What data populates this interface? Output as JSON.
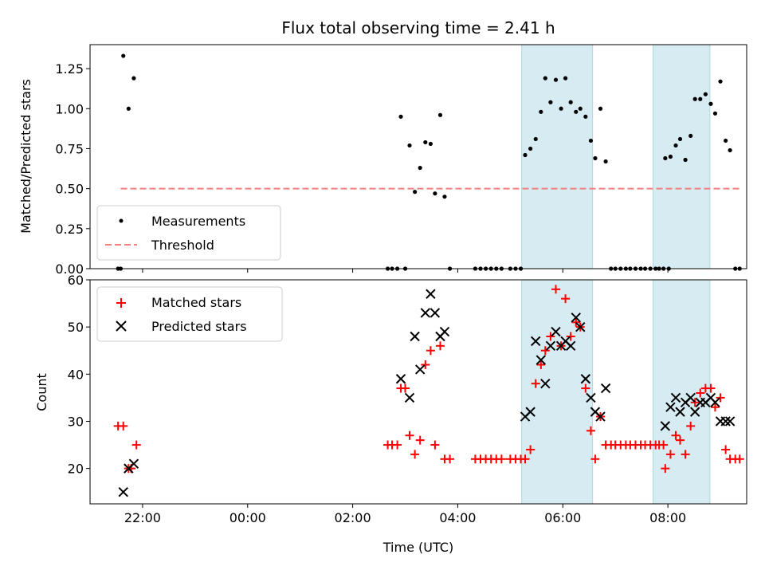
{
  "chart_data": [
    {
      "type": "scatter",
      "title": "Flux total observing time = 2.41 h",
      "xlabel": "",
      "ylabel": "Matched/Predicted stars",
      "xlim": [
        "21:00",
        "09:30"
      ],
      "ylim": [
        0,
        1.4
      ],
      "yticks": [
        "0.00",
        "0.25",
        "0.50",
        "0.75",
        "1.00",
        "1.25"
      ],
      "legend_position": "lower-left",
      "shaded_intervals": [
        [
          "05:13",
          "06:34"
        ],
        [
          "07:43",
          "08:48"
        ]
      ],
      "series": [
        {
          "name": "Measurements",
          "marker": "dot",
          "color": "#000000",
          "points": [
            [
              "21:32",
              0
            ],
            [
              "21:35",
              0
            ],
            [
              "21:38",
              1.33
            ],
            [
              "21:44",
              1.0
            ],
            [
              "21:50",
              1.19
            ],
            [
              "02:40",
              0
            ],
            [
              "02:45",
              0
            ],
            [
              "02:51",
              0
            ],
            [
              "02:55",
              0.95
            ],
            [
              "03:00",
              0
            ],
            [
              "03:05",
              0.77
            ],
            [
              "03:11",
              0.48
            ],
            [
              "03:17",
              0.63
            ],
            [
              "03:23",
              0.79
            ],
            [
              "03:29",
              0.78
            ],
            [
              "03:34",
              0.47
            ],
            [
              "03:40",
              0.96
            ],
            [
              "03:45",
              0.45
            ],
            [
              "03:51",
              0
            ],
            [
              "04:20",
              0
            ],
            [
              "04:26",
              0
            ],
            [
              "04:32",
              0
            ],
            [
              "04:38",
              0
            ],
            [
              "04:44",
              0
            ],
            [
              "04:50",
              0
            ],
            [
              "05:00",
              0
            ],
            [
              "05:06",
              0
            ],
            [
              "05:12",
              0
            ],
            [
              "05:17",
              0.71
            ],
            [
              "05:23",
              0.75
            ],
            [
              "05:29",
              0.81
            ],
            [
              "05:35",
              0.98
            ],
            [
              "05:40",
              1.19
            ],
            [
              "05:46",
              1.04
            ],
            [
              "05:52",
              1.18
            ],
            [
              "05:58",
              1.0
            ],
            [
              "06:03",
              1.19
            ],
            [
              "06:09",
              1.04
            ],
            [
              "06:15",
              0.98
            ],
            [
              "06:20",
              1.0
            ],
            [
              "06:26",
              0.95
            ],
            [
              "06:32",
              0.8
            ],
            [
              "06:37",
              0.69
            ],
            [
              "06:43",
              1.0
            ],
            [
              "06:49",
              0.67
            ],
            [
              "06:55",
              0
            ],
            [
              "07:00",
              0
            ],
            [
              "07:06",
              0
            ],
            [
              "07:12",
              0
            ],
            [
              "07:17",
              0
            ],
            [
              "07:23",
              0
            ],
            [
              "07:29",
              0
            ],
            [
              "07:34",
              0
            ],
            [
              "07:40",
              0
            ],
            [
              "07:46",
              0
            ],
            [
              "07:50",
              0
            ],
            [
              "07:55",
              0
            ],
            [
              "08:01",
              0
            ],
            [
              "07:57",
              0.69
            ],
            [
              "08:03",
              0.7
            ],
            [
              "08:09",
              0.77
            ],
            [
              "08:14",
              0.81
            ],
            [
              "08:20",
              0.68
            ],
            [
              "08:26",
              0.83
            ],
            [
              "08:31",
              1.06
            ],
            [
              "08:37",
              1.06
            ],
            [
              "08:43",
              1.09
            ],
            [
              "08:49",
              1.03
            ],
            [
              "08:54",
              0.97
            ],
            [
              "09:00",
              1.17
            ],
            [
              "09:06",
              0.8
            ],
            [
              "09:11",
              0.74
            ],
            [
              "09:17",
              0
            ],
            [
              "09:22",
              0
            ]
          ]
        },
        {
          "name": "Threshold",
          "marker": "dashed-line",
          "color": "#f08080",
          "x": [
            "21:35",
            "09:22"
          ],
          "y": [
            0.5,
            0.5
          ]
        }
      ]
    },
    {
      "type": "scatter",
      "title": "",
      "xlabel": "Time (UTC)",
      "ylabel": "Count",
      "xlim": [
        "21:00",
        "09:30"
      ],
      "ylim": [
        12.5,
        60
      ],
      "yticks": [
        "20",
        "30",
        "40",
        "50",
        "60"
      ],
      "xticks": [
        "22:00",
        "00:00",
        "02:00",
        "04:00",
        "06:00",
        "08:00"
      ],
      "legend_position": "upper-left",
      "shaded_intervals": [
        [
          "05:13",
          "06:34"
        ],
        [
          "07:43",
          "08:48"
        ]
      ],
      "series": [
        {
          "name": "Matched stars",
          "marker": "plus",
          "color": "#ff0000",
          "points": [
            [
              "21:32",
              29
            ],
            [
              "21:38",
              29
            ],
            [
              "21:44",
              20
            ],
            [
              "21:47",
              20
            ],
            [
              "21:53",
              25
            ],
            [
              "02:40",
              25
            ],
            [
              "02:45",
              25
            ],
            [
              "02:51",
              25
            ],
            [
              "02:55",
              37
            ],
            [
              "03:00",
              37
            ],
            [
              "03:05",
              27
            ],
            [
              "03:11",
              23
            ],
            [
              "03:17",
              26
            ],
            [
              "03:23",
              42
            ],
            [
              "03:29",
              45
            ],
            [
              "03:34",
              25
            ],
            [
              "03:40",
              46
            ],
            [
              "03:45",
              22
            ],
            [
              "03:51",
              22
            ],
            [
              "04:20",
              22
            ],
            [
              "04:26",
              22
            ],
            [
              "04:32",
              22
            ],
            [
              "04:38",
              22
            ],
            [
              "04:44",
              22
            ],
            [
              "04:50",
              22
            ],
            [
              "05:00",
              22
            ],
            [
              "05:06",
              22
            ],
            [
              "05:12",
              22
            ],
            [
              "05:17",
              22
            ],
            [
              "05:23",
              24
            ],
            [
              "05:29",
              38
            ],
            [
              "05:35",
              42
            ],
            [
              "05:40",
              45
            ],
            [
              "05:46",
              48
            ],
            [
              "05:52",
              58
            ],
            [
              "05:58",
              46
            ],
            [
              "06:03",
              56
            ],
            [
              "06:09",
              48
            ],
            [
              "06:15",
              51
            ],
            [
              "06:20",
              50
            ],
            [
              "06:26",
              37
            ],
            [
              "06:32",
              28
            ],
            [
              "06:37",
              22
            ],
            [
              "06:43",
              31
            ],
            [
              "06:49",
              25
            ],
            [
              "06:55",
              25
            ],
            [
              "07:00",
              25
            ],
            [
              "07:06",
              25
            ],
            [
              "07:12",
              25
            ],
            [
              "07:17",
              25
            ],
            [
              "07:23",
              25
            ],
            [
              "07:29",
              25
            ],
            [
              "07:34",
              25
            ],
            [
              "07:40",
              25
            ],
            [
              "07:46",
              25
            ],
            [
              "07:50",
              25
            ],
            [
              "07:55",
              25
            ],
            [
              "07:57",
              20
            ],
            [
              "08:03",
              23
            ],
            [
              "08:09",
              27
            ],
            [
              "08:14",
              26
            ],
            [
              "08:20",
              23
            ],
            [
              "08:26",
              29
            ],
            [
              "08:31",
              34
            ],
            [
              "08:37",
              36
            ],
            [
              "08:43",
              37
            ],
            [
              "08:49",
              37
            ],
            [
              "08:54",
              33
            ],
            [
              "09:00",
              35
            ],
            [
              "09:06",
              24
            ],
            [
              "09:11",
              22
            ],
            [
              "09:17",
              22
            ],
            [
              "09:22",
              22
            ]
          ]
        },
        {
          "name": "Predicted stars",
          "marker": "x",
          "color": "#000000",
          "points": [
            [
              "21:38",
              15
            ],
            [
              "21:44",
              20
            ],
            [
              "21:50",
              21
            ],
            [
              "02:55",
              39
            ],
            [
              "03:05",
              35
            ],
            [
              "03:11",
              48
            ],
            [
              "03:17",
              41
            ],
            [
              "03:23",
              53
            ],
            [
              "03:29",
              57
            ],
            [
              "03:34",
              53
            ],
            [
              "03:40",
              48
            ],
            [
              "03:45",
              49
            ],
            [
              "05:17",
              31
            ],
            [
              "05:23",
              32
            ],
            [
              "05:29",
              47
            ],
            [
              "05:35",
              43
            ],
            [
              "05:40",
              38
            ],
            [
              "05:46",
              46
            ],
            [
              "05:52",
              49
            ],
            [
              "05:58",
              46
            ],
            [
              "06:03",
              47
            ],
            [
              "06:09",
              46
            ],
            [
              "06:15",
              52
            ],
            [
              "06:20",
              50
            ],
            [
              "06:26",
              39
            ],
            [
              "06:32",
              35
            ],
            [
              "06:37",
              32
            ],
            [
              "06:43",
              31
            ],
            [
              "06:49",
              37
            ],
            [
              "07:57",
              29
            ],
            [
              "08:03",
              33
            ],
            [
              "08:09",
              35
            ],
            [
              "08:14",
              32
            ],
            [
              "08:20",
              34
            ],
            [
              "08:26",
              35
            ],
            [
              "08:31",
              32
            ],
            [
              "08:37",
              34
            ],
            [
              "08:43",
              34
            ],
            [
              "08:49",
              35
            ],
            [
              "08:54",
              34
            ],
            [
              "09:00",
              30
            ],
            [
              "09:06",
              30
            ],
            [
              "09:11",
              30
            ]
          ]
        }
      ]
    }
  ]
}
